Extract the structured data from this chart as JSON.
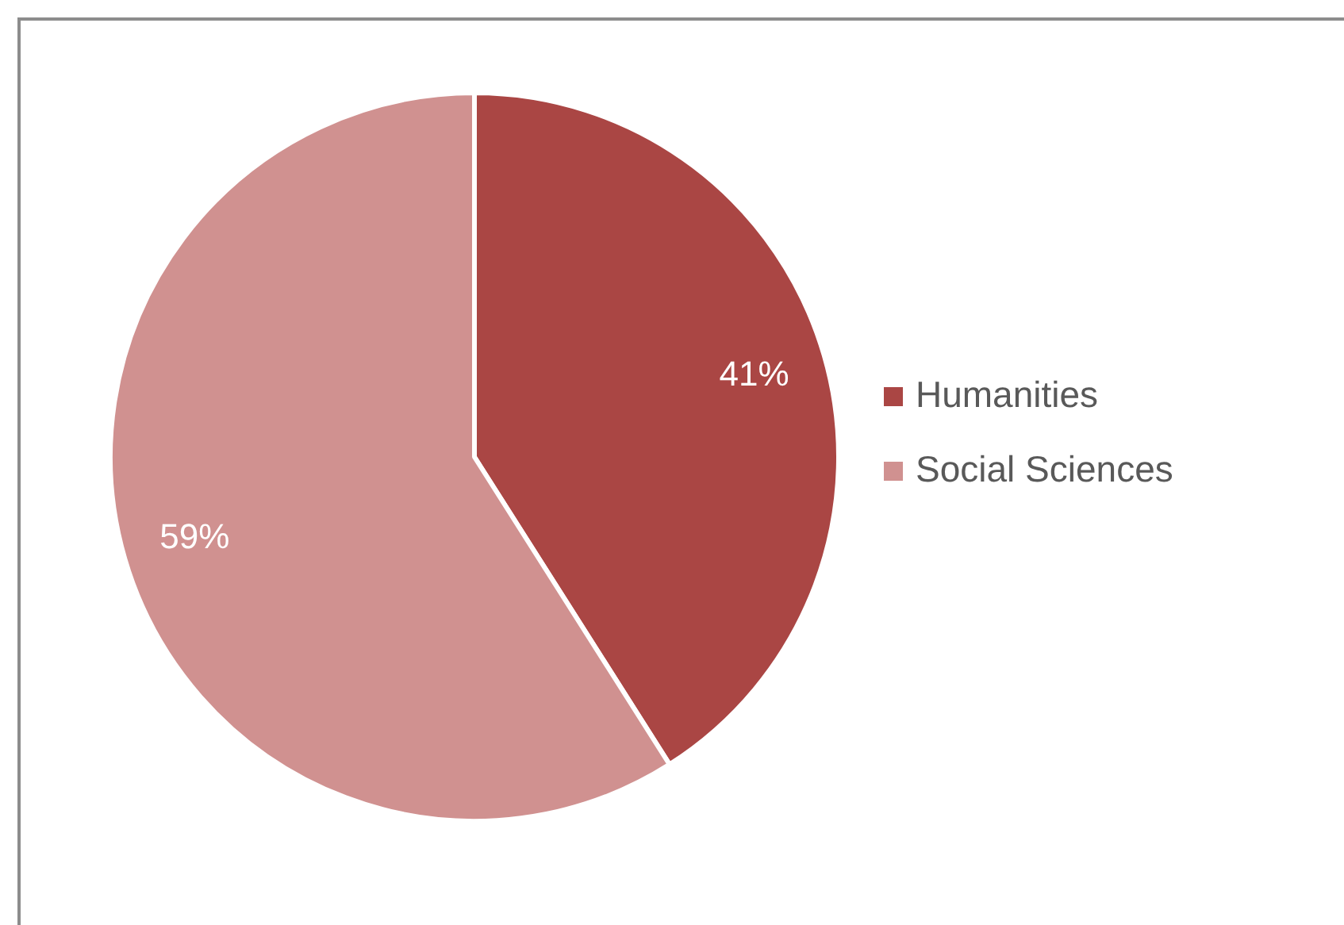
{
  "chart_data": {
    "type": "pie",
    "categories": [
      "Humanities",
      "Social Sciences"
    ],
    "values": [
      41,
      59
    ],
    "colors": [
      "#aa4644",
      "#d09190"
    ],
    "value_labels": [
      "41%",
      "59%"
    ],
    "legend": "right"
  }
}
